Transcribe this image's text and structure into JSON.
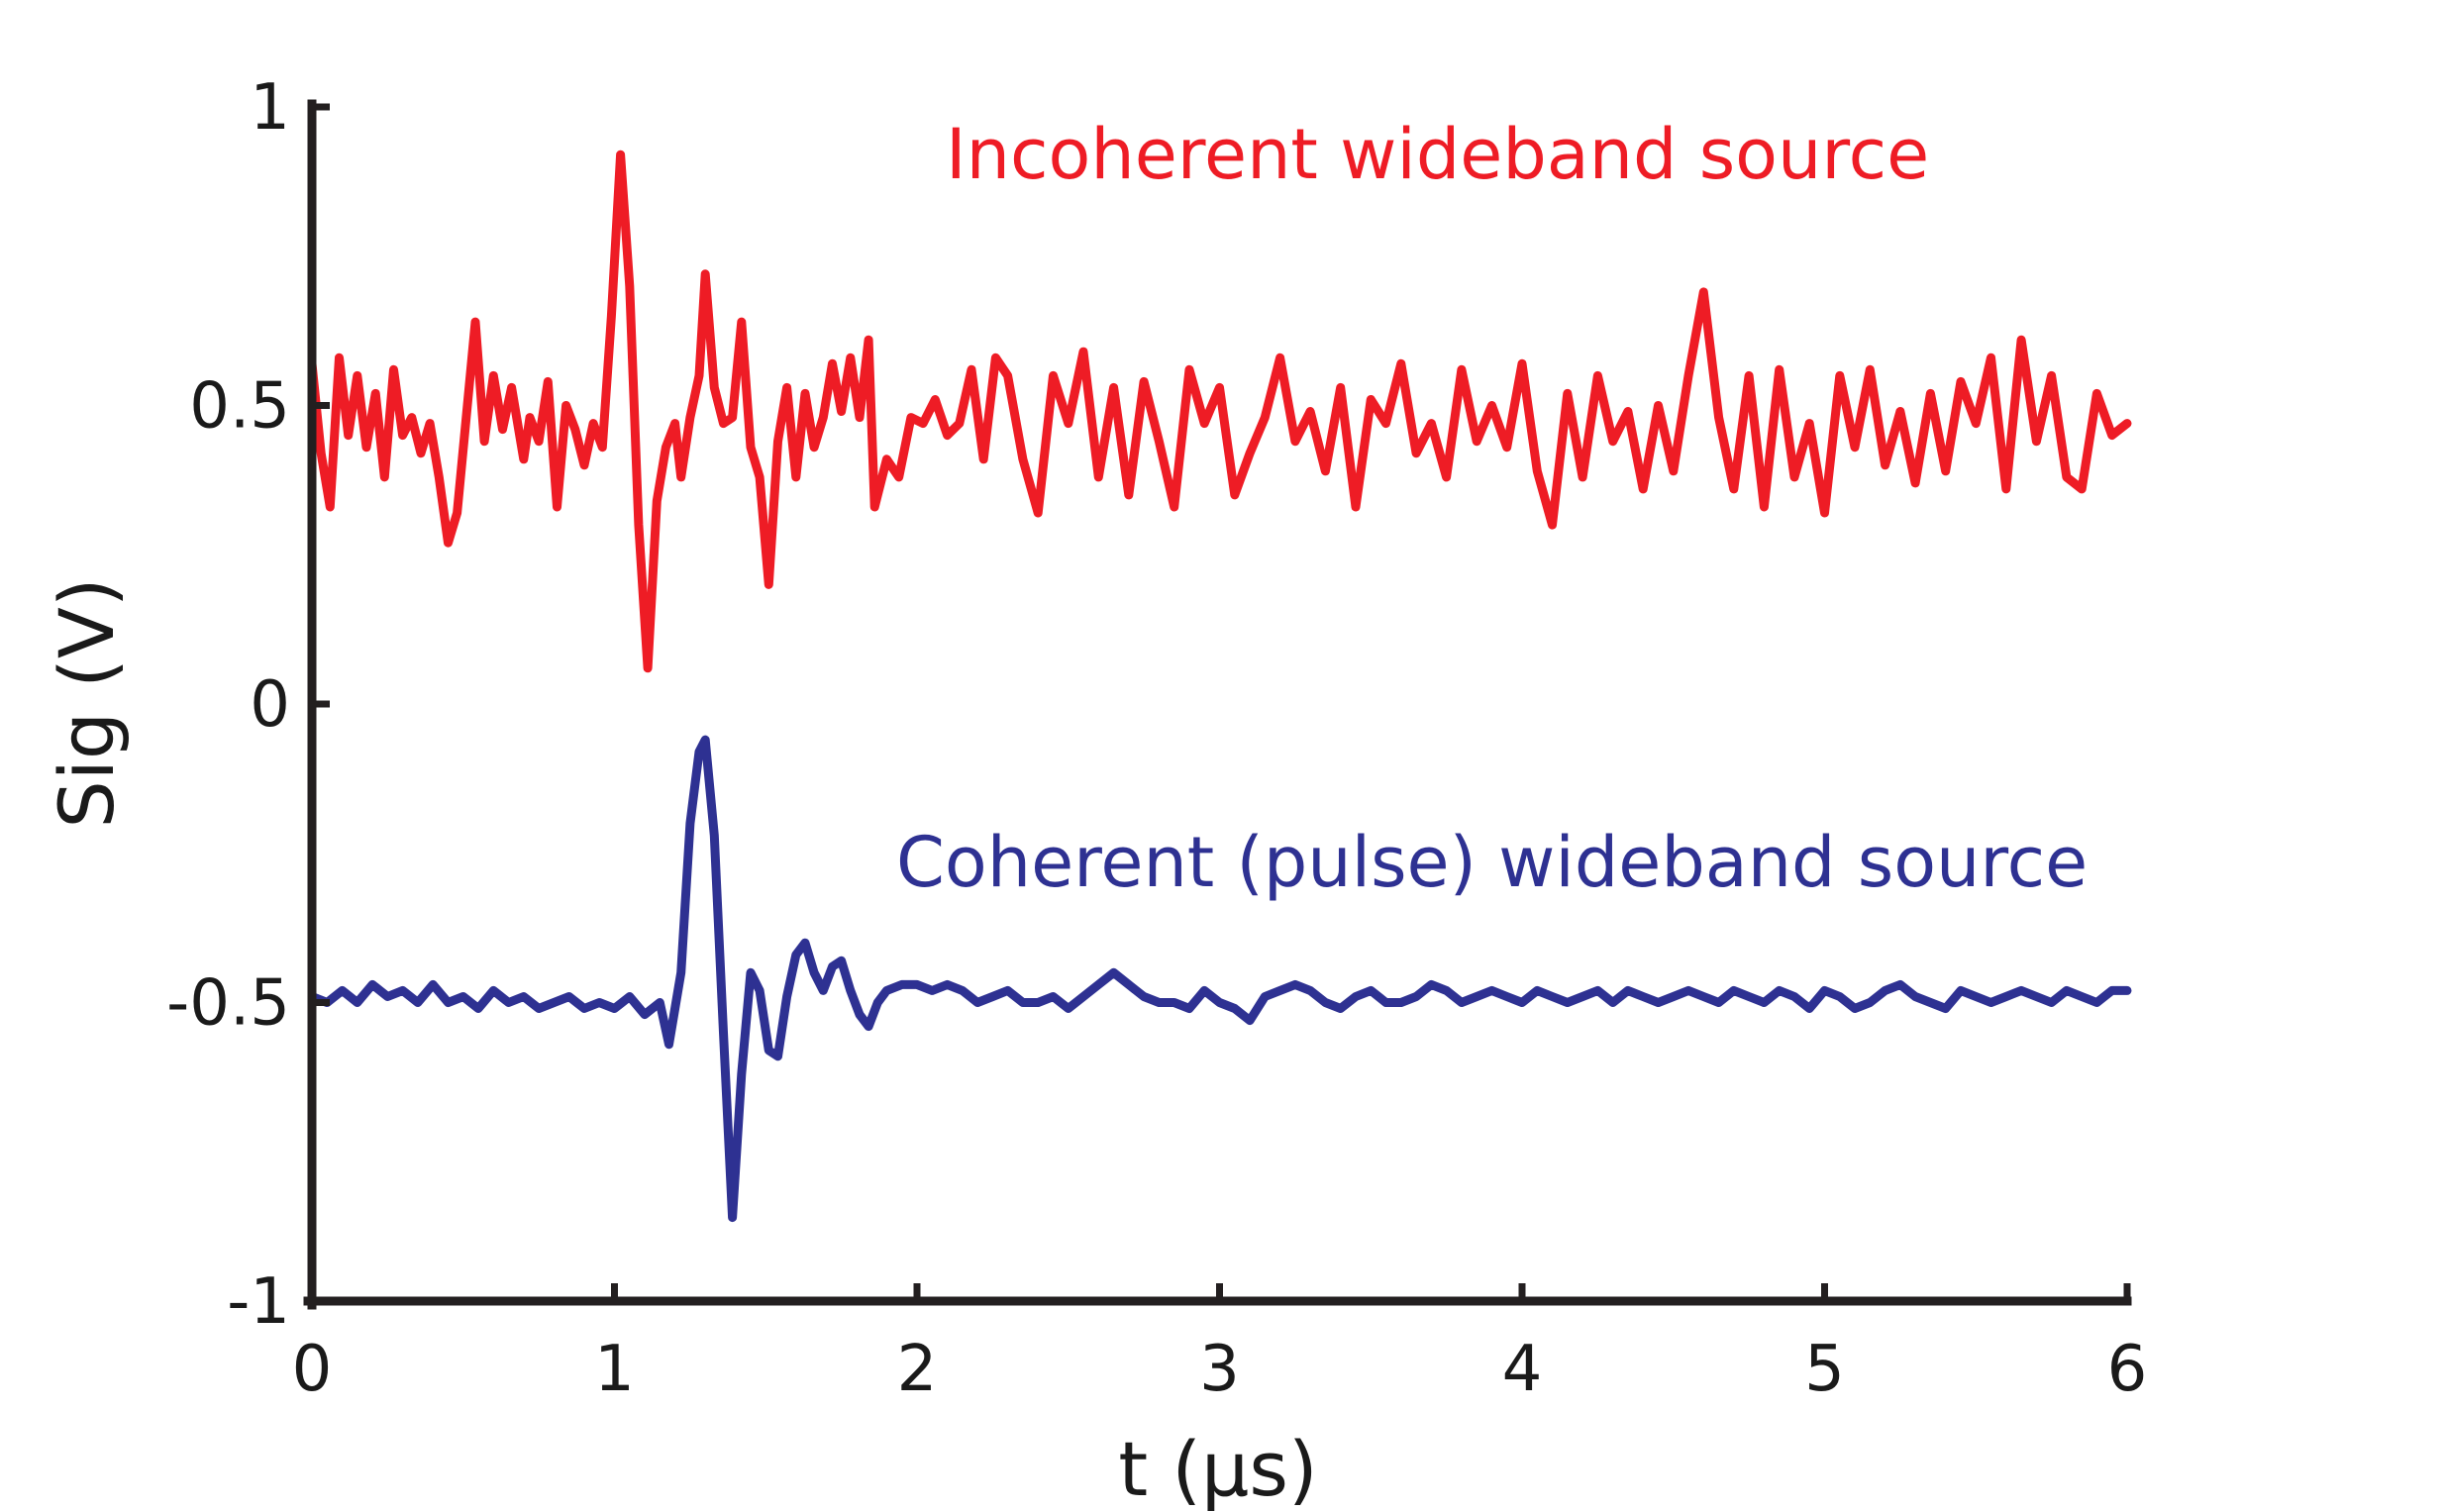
{
  "chart_data": {
    "type": "line",
    "title": "",
    "xlabel": "t (µs)",
    "ylabel": "Sig (V)",
    "xlim": [
      0,
      6
    ],
    "ylim": [
      -1,
      1
    ],
    "xticks": [
      0,
      1,
      2,
      3,
      4,
      5,
      6
    ],
    "xtick_labels": [
      "0",
      "1",
      "2",
      "3",
      "4",
      "5",
      "6"
    ],
    "yticks": [
      1,
      0.5,
      0,
      -0.5,
      -1
    ],
    "ytick_labels": [
      "1",
      "0.5",
      "0",
      "-0.5",
      "-1"
    ],
    "grid": false,
    "legend": "none",
    "series": [
      {
        "name": "Incoherent wideband source",
        "color": "#ee1c25",
        "x": [
          0.0,
          0.03,
          0.06,
          0.09,
          0.12,
          0.15,
          0.18,
          0.21,
          0.24,
          0.27,
          0.3,
          0.33,
          0.36,
          0.39,
          0.42,
          0.45,
          0.48,
          0.51,
          0.54,
          0.57,
          0.6,
          0.63,
          0.66,
          0.7,
          0.72,
          0.75,
          0.78,
          0.81,
          0.84,
          0.87,
          0.9,
          0.93,
          0.96,
          0.99,
          1.02,
          1.05,
          1.08,
          1.11,
          1.14,
          1.17,
          1.2,
          1.22,
          1.25,
          1.28,
          1.3,
          1.33,
          1.36,
          1.39,
          1.42,
          1.45,
          1.48,
          1.51,
          1.54,
          1.57,
          1.6,
          1.63,
          1.66,
          1.69,
          1.72,
          1.75,
          1.78,
          1.81,
          1.84,
          1.86,
          1.9,
          1.94,
          1.98,
          2.02,
          2.06,
          2.1,
          2.14,
          2.18,
          2.22,
          2.26,
          2.3,
          2.35,
          2.4,
          2.45,
          2.5,
          2.55,
          2.6,
          2.65,
          2.7,
          2.75,
          2.8,
          2.85,
          2.9,
          2.95,
          3.0,
          3.05,
          3.1,
          3.15,
          3.2,
          3.25,
          3.3,
          3.35,
          3.4,
          3.45,
          3.5,
          3.55,
          3.6,
          3.65,
          3.7,
          3.75,
          3.8,
          3.85,
          3.9,
          3.95,
          4.0,
          4.05,
          4.1,
          4.15,
          4.2,
          4.25,
          4.3,
          4.35,
          4.4,
          4.45,
          4.5,
          4.55,
          4.6,
          4.65,
          4.7,
          4.75,
          4.8,
          4.85,
          4.9,
          4.95,
          5.0,
          5.05,
          5.1,
          5.15,
          5.2,
          5.25,
          5.3,
          5.35,
          5.4,
          5.45,
          5.5,
          5.55,
          5.6,
          5.65,
          5.7,
          5.75,
          5.8,
          5.85,
          5.9,
          5.95,
          6.0
        ],
        "y": [
          0.57,
          0.42,
          0.33,
          0.58,
          0.45,
          0.55,
          0.43,
          0.52,
          0.38,
          0.56,
          0.45,
          0.48,
          0.42,
          0.47,
          0.38,
          0.27,
          0.32,
          0.48,
          0.64,
          0.44,
          0.55,
          0.46,
          0.53,
          0.41,
          0.48,
          0.44,
          0.54,
          0.33,
          0.5,
          0.46,
          0.4,
          0.47,
          0.43,
          0.65,
          0.92,
          0.7,
          0.3,
          0.06,
          0.34,
          0.43,
          0.47,
          0.38,
          0.48,
          0.55,
          0.72,
          0.53,
          0.47,
          0.48,
          0.64,
          0.43,
          0.38,
          0.2,
          0.44,
          0.53,
          0.38,
          0.52,
          0.43,
          0.48,
          0.57,
          0.49,
          0.58,
          0.48,
          0.61,
          0.33,
          0.41,
          0.38,
          0.48,
          0.47,
          0.51,
          0.45,
          0.47,
          0.56,
          0.41,
          0.58,
          0.55,
          0.41,
          0.32,
          0.55,
          0.47,
          0.59,
          0.38,
          0.53,
          0.35,
          0.54,
          0.44,
          0.33,
          0.56,
          0.47,
          0.53,
          0.35,
          0.42,
          0.48,
          0.58,
          0.44,
          0.49,
          0.39,
          0.53,
          0.33,
          0.51,
          0.47,
          0.57,
          0.42,
          0.47,
          0.38,
          0.56,
          0.44,
          0.5,
          0.43,
          0.57,
          0.39,
          0.3,
          0.52,
          0.38,
          0.55,
          0.44,
          0.49,
          0.36,
          0.5,
          0.39,
          0.55,
          0.69,
          0.48,
          0.36,
          0.55,
          0.33,
          0.56,
          0.38,
          0.47,
          0.32,
          0.55,
          0.43,
          0.56,
          0.4,
          0.49,
          0.37,
          0.52,
          0.39,
          0.54,
          0.47,
          0.58,
          0.36,
          0.61,
          0.44,
          0.55,
          0.38,
          0.36,
          0.52,
          0.45,
          0.47
        ]
      },
      {
        "name": "Coherent (pulse) wideband source",
        "color": "#2e3192",
        "x": [
          0.0,
          0.05,
          0.1,
          0.15,
          0.2,
          0.25,
          0.3,
          0.35,
          0.4,
          0.45,
          0.5,
          0.55,
          0.6,
          0.65,
          0.7,
          0.75,
          0.8,
          0.85,
          0.9,
          0.95,
          1.0,
          1.05,
          1.1,
          1.15,
          1.18,
          1.22,
          1.25,
          1.28,
          1.3,
          1.33,
          1.36,
          1.39,
          1.42,
          1.45,
          1.48,
          1.51,
          1.54,
          1.57,
          1.6,
          1.63,
          1.66,
          1.69,
          1.72,
          1.75,
          1.78,
          1.81,
          1.84,
          1.87,
          1.9,
          1.95,
          2.0,
          2.05,
          2.1,
          2.15,
          2.2,
          2.25,
          2.3,
          2.35,
          2.4,
          2.45,
          2.5,
          2.55,
          2.6,
          2.65,
          2.7,
          2.75,
          2.8,
          2.85,
          2.9,
          2.95,
          3.0,
          3.05,
          3.1,
          3.15,
          3.2,
          3.25,
          3.3,
          3.35,
          3.4,
          3.45,
          3.5,
          3.55,
          3.6,
          3.65,
          3.7,
          3.75,
          3.8,
          3.85,
          3.9,
          3.95,
          4.0,
          4.05,
          4.1,
          4.15,
          4.2,
          4.25,
          4.3,
          4.35,
          4.4,
          4.45,
          4.5,
          4.55,
          4.6,
          4.65,
          4.7,
          4.75,
          4.8,
          4.85,
          4.9,
          4.95,
          5.0,
          5.05,
          5.1,
          5.15,
          5.2,
          5.25,
          5.3,
          5.35,
          5.4,
          5.45,
          5.5,
          5.55,
          5.6,
          5.65,
          5.7,
          5.75,
          5.8,
          5.85,
          5.9,
          5.95,
          6.0
        ],
        "y": [
          -0.49,
          -0.5,
          -0.48,
          -0.5,
          -0.47,
          -0.49,
          -0.48,
          -0.5,
          -0.47,
          -0.5,
          -0.49,
          -0.51,
          -0.48,
          -0.5,
          -0.49,
          -0.51,
          -0.5,
          -0.49,
          -0.51,
          -0.5,
          -0.51,
          -0.49,
          -0.52,
          -0.5,
          -0.57,
          -0.45,
          -0.2,
          -0.08,
          -0.06,
          -0.22,
          -0.55,
          -0.86,
          -0.62,
          -0.45,
          -0.48,
          -0.58,
          -0.59,
          -0.49,
          -0.42,
          -0.4,
          -0.45,
          -0.48,
          -0.44,
          -0.43,
          -0.48,
          -0.52,
          -0.54,
          -0.5,
          -0.48,
          -0.47,
          -0.47,
          -0.48,
          -0.47,
          -0.48,
          -0.5,
          -0.49,
          -0.48,
          -0.5,
          -0.5,
          -0.49,
          -0.51,
          -0.49,
          -0.47,
          -0.45,
          -0.47,
          -0.49,
          -0.5,
          -0.5,
          -0.51,
          -0.48,
          -0.5,
          -0.51,
          -0.53,
          -0.49,
          -0.48,
          -0.47,
          -0.48,
          -0.5,
          -0.51,
          -0.49,
          -0.48,
          -0.5,
          -0.5,
          -0.49,
          -0.47,
          -0.48,
          -0.5,
          -0.49,
          -0.48,
          -0.49,
          -0.5,
          -0.48,
          -0.49,
          -0.5,
          -0.49,
          -0.48,
          -0.5,
          -0.48,
          -0.49,
          -0.5,
          -0.49,
          -0.48,
          -0.49,
          -0.5,
          -0.48,
          -0.49,
          -0.5,
          -0.48,
          -0.49,
          -0.51,
          -0.48,
          -0.49,
          -0.51,
          -0.5,
          -0.48,
          -0.47,
          -0.49,
          -0.5,
          -0.51,
          -0.48,
          -0.49,
          -0.5,
          -0.49,
          -0.48,
          -0.49,
          -0.5,
          -0.48,
          -0.49,
          -0.5,
          -0.48,
          -0.48
        ]
      }
    ]
  }
}
